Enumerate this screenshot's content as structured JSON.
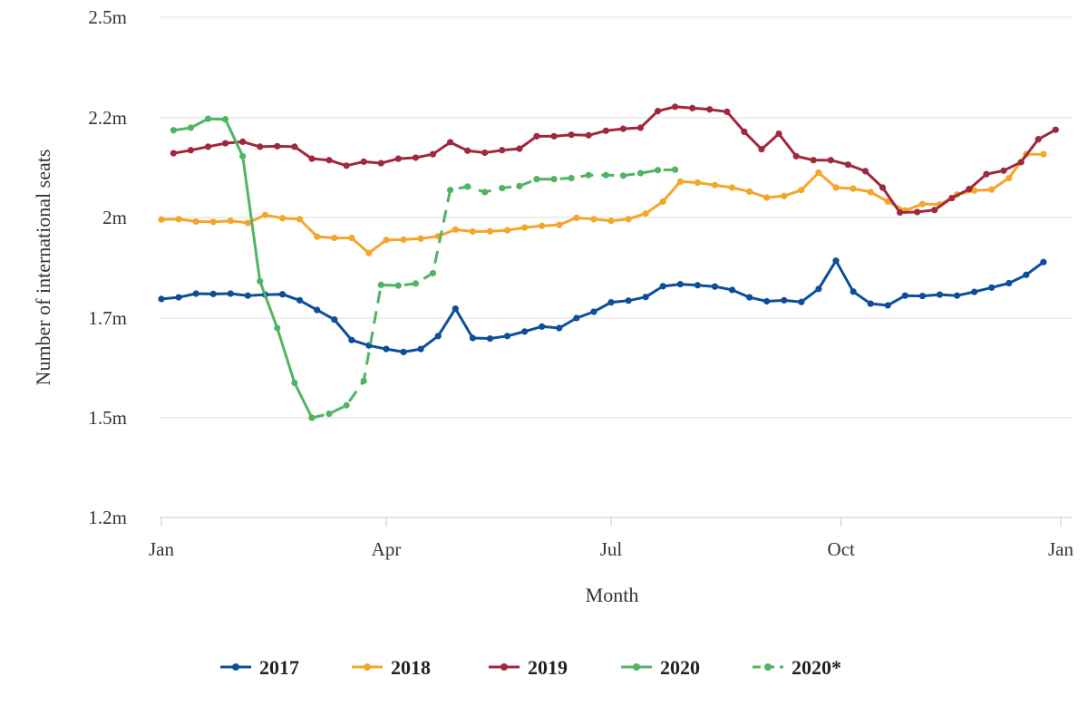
{
  "chart_data": {
    "type": "line",
    "xlabel": "Month",
    "ylabel": "Number of international seats",
    "x_ticks": [
      {
        "label": "Jan",
        "week": 0
      },
      {
        "label": "Apr",
        "week": 13
      },
      {
        "label": "Jul",
        "week": 26
      },
      {
        "label": "Oct",
        "week": 39.3
      },
      {
        "label": "Jan",
        "week": 52
      }
    ],
    "y_ticks": [
      {
        "label": "1.2m",
        "value": 1.2
      },
      {
        "label": "1.5m",
        "value": 1.5
      },
      {
        "label": "1.7m",
        "value": 1.7
      },
      {
        "label": "2m",
        "value": 2.0
      },
      {
        "label": "2.2m",
        "value": 2.2
      },
      {
        "label": "2.5m",
        "value": 2.5
      }
    ],
    "ylim": [
      1.2,
      2.5
    ],
    "xlim": [
      0,
      52
    ],
    "grid": "horizontal",
    "legend_position": "bottom",
    "series": [
      {
        "name": "2017",
        "color": "#0d4e9b",
        "dashed": false,
        "x_start": 0,
        "values": [
          1.757,
          1.762,
          1.773,
          1.772,
          1.773,
          1.767,
          1.77,
          1.771,
          1.753,
          1.724,
          1.697,
          1.656,
          1.645,
          1.638,
          1.632,
          1.638,
          1.664,
          1.728,
          1.66,
          1.659,
          1.664,
          1.673,
          1.683,
          1.68,
          1.7,
          1.719,
          1.747,
          1.752,
          1.763,
          1.795,
          1.801,
          1.798,
          1.794,
          1.784,
          1.762,
          1.75,
          1.753,
          1.748,
          1.787,
          1.871,
          1.779,
          1.743,
          1.738,
          1.767,
          1.766,
          1.77,
          1.767,
          1.778,
          1.791,
          1.804,
          1.829,
          1.867
        ]
      },
      {
        "name": "2018",
        "color": "#f5a52a",
        "dashed": false,
        "x_start": 0,
        "values": [
          1.994,
          1.995,
          1.988,
          1.987,
          1.99,
          1.984,
          2.005,
          1.998,
          1.995,
          1.943,
          1.939,
          1.939,
          1.894,
          1.933,
          1.934,
          1.937,
          1.944,
          1.964,
          1.958,
          1.959,
          1.962,
          1.97,
          1.975,
          1.978,
          1.999,
          1.995,
          1.99,
          1.995,
          2.008,
          2.032,
          2.072,
          2.07,
          2.065,
          2.06,
          2.052,
          2.04,
          2.043,
          2.055,
          2.09,
          2.06,
          2.058,
          2.051,
          2.032,
          2.014,
          2.027,
          2.026,
          2.046,
          2.054,
          2.056,
          2.079,
          2.127,
          2.127
        ]
      },
      {
        "name": "2019",
        "color": "#a0283e",
        "dashed": false,
        "x_start": 0.7,
        "values": [
          2.129,
          2.135,
          2.142,
          2.149,
          2.152,
          2.142,
          2.143,
          2.142,
          2.118,
          2.115,
          2.104,
          2.112,
          2.109,
          2.118,
          2.12,
          2.127,
          2.151,
          2.134,
          2.13,
          2.135,
          2.138,
          2.163,
          2.163,
          2.166,
          2.165,
          2.174,
          2.178,
          2.18,
          2.22,
          2.233,
          2.229,
          2.225,
          2.218,
          2.172,
          2.137,
          2.168,
          2.123,
          2.115,
          2.115,
          2.106,
          2.093,
          2.06,
          2.01,
          2.011,
          2.015,
          2.039,
          2.057,
          2.087,
          2.094,
          2.111,
          2.157,
          2.176
        ]
      },
      {
        "name": "2020",
        "color": "#50b463",
        "dashed": false,
        "x_start": 0.7,
        "values": [
          2.175,
          2.18,
          2.198,
          2.197,
          2.123,
          1.81,
          1.68,
          1.57,
          1.5
        ]
      },
      {
        "name": "2020*",
        "color": "#50b463",
        "dashed": true,
        "x_start": 8.7,
        "values": [
          1.5,
          1.508,
          1.525,
          1.574,
          1.799,
          1.797,
          1.803,
          1.834,
          2.055,
          2.062,
          2.051,
          2.059,
          2.063,
          2.077,
          2.077,
          2.079,
          2.085,
          2.085,
          2.084,
          2.089,
          2.095,
          2.096
        ]
      }
    ]
  }
}
